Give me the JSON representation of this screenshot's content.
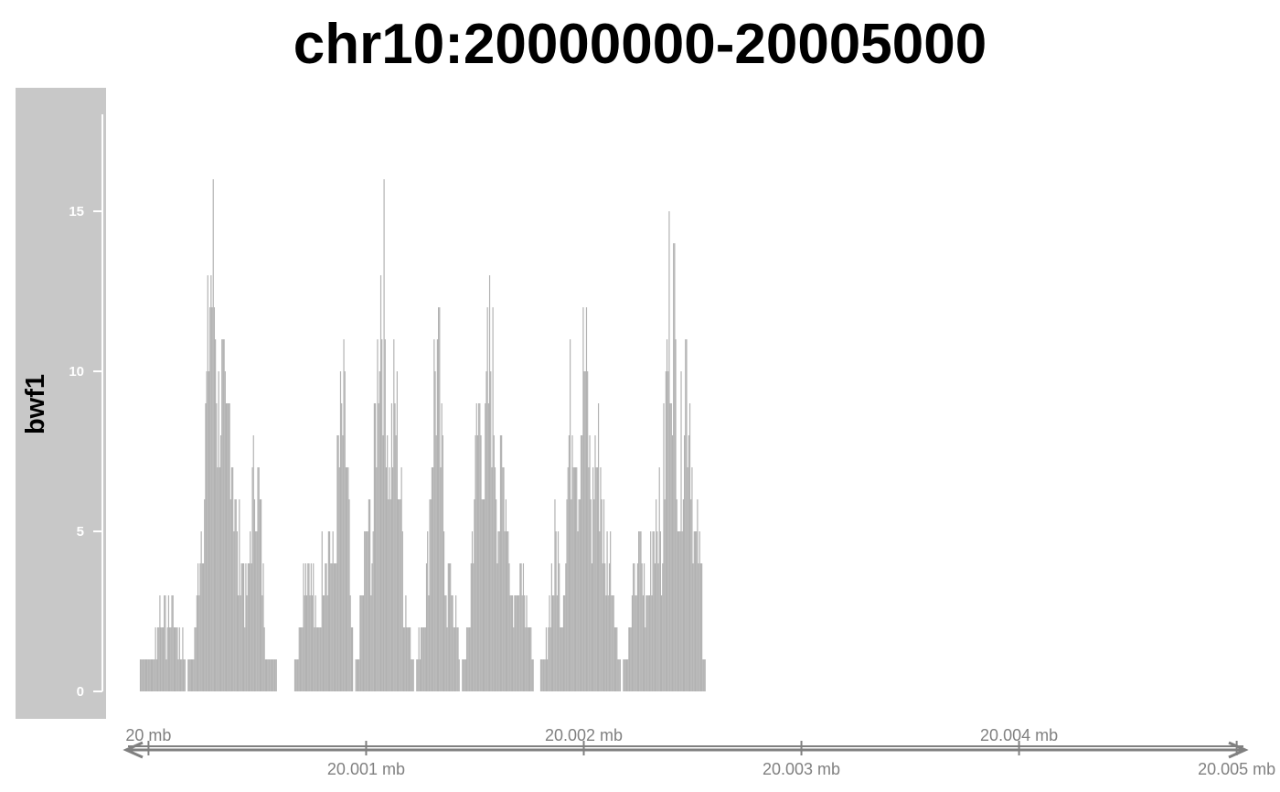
{
  "title": "chr10:20000000-20005000",
  "track_name": "bwf1",
  "colors": {
    "panel": "#c8c8c8",
    "data": "#b2b2b2",
    "axis_line": "#ffffff",
    "axis_text": "#808080",
    "genome_axis": "#808080"
  },
  "chart_data": {
    "type": "area",
    "title": "chr10:20000000-20005000",
    "ylabel": "bwf1",
    "xlabel": "",
    "xlim": [
      19999805,
      20005115
    ],
    "ylim": [
      0,
      18
    ],
    "y_ticks": [
      0,
      5,
      10,
      15
    ],
    "y_tick_labels": [
      "0",
      "5",
      "10",
      "15"
    ],
    "x_ticks": [
      20000000,
      20001000,
      20002000,
      20003000,
      20004000,
      20005000
    ],
    "x_tick_labels": [
      "20 mb",
      "20.001 mb",
      "20.002 mb",
      "20.003 mb",
      "20.004 mb",
      "20.005 mb"
    ],
    "series": [
      {
        "regions": [
          {
            "start": 19999960,
            "end": 20000170,
            "peaks": [
              [
                20000060,
                3
              ],
              [
                20000100,
                3
              ],
              [
                20000140,
                2
              ]
            ]
          },
          {
            "start": 20000180,
            "end": 20000590,
            "peaks": [
              [
                20000260,
                8
              ],
              [
                20000290,
                15
              ],
              [
                20000330,
                11
              ],
              [
                20000370,
                10
              ],
              [
                20000420,
                5
              ],
              [
                20000490,
                8
              ]
            ]
          },
          {
            "start": 20000670,
            "end": 20000940,
            "peaks": [
              [
                20000730,
                5
              ],
              [
                20000820,
                6
              ],
              [
                20000890,
                10
              ]
            ]
          },
          {
            "start": 20000950,
            "end": 20001220,
            "peaks": [
              [
                20001010,
                6
              ],
              [
                20001070,
                15
              ],
              [
                20001130,
                10
              ],
              [
                20001180,
                3
              ]
            ]
          },
          {
            "start": 20001230,
            "end": 20001430,
            "peaks": [
              [
                20001270,
                3
              ],
              [
                20001320,
                12
              ],
              [
                20001380,
                4
              ]
            ]
          },
          {
            "start": 20001440,
            "end": 20001770,
            "peaks": [
              [
                20001520,
                10
              ],
              [
                20001570,
                12
              ],
              [
                20001630,
                8
              ],
              [
                20001710,
                5
              ]
            ]
          },
          {
            "start": 20001800,
            "end": 20002170,
            "peaks": [
              [
                20001870,
                5
              ],
              [
                20001950,
                11
              ],
              [
                20002000,
                12
              ],
              [
                20002060,
                9
              ],
              [
                20002110,
                5
              ]
            ]
          },
          {
            "start": 20002180,
            "end": 20002560,
            "peaks": [
              [
                20002250,
                5
              ],
              [
                20002330,
                7
              ],
              [
                20002400,
                15
              ],
              [
                20002470,
                12
              ],
              [
                20002520,
                5
              ]
            ]
          }
        ]
      }
    ],
    "grid": false,
    "legend": "none"
  }
}
